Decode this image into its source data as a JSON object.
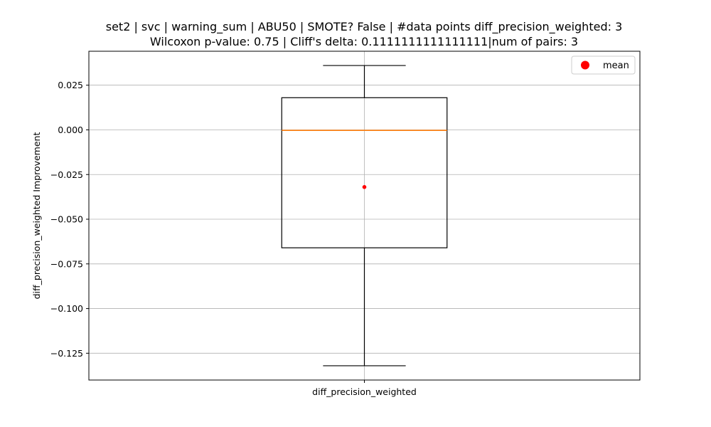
{
  "chart_data": {
    "type": "box",
    "title": "set2 | svc | warning_sum | ABU50 | SMOTE? False | #data points diff_precision_weighted: 3",
    "subtitle": "Wilcoxon p-value: 0.75 | Cliff's delta: 0.1111111111111111|num of pairs: 3",
    "xlabel": "",
    "ylabel": "diff_precision_weighted Improvement",
    "categories": [
      "diff_precision_weighted"
    ],
    "ylim": [
      -0.14,
      0.044
    ],
    "yticks": [
      0.025,
      0.0,
      -0.025,
      -0.05,
      -0.075,
      -0.1,
      -0.125
    ],
    "ytick_labels": [
      "0.025",
      "0.000",
      "−0.025",
      "−0.050",
      "−0.075",
      "−0.100",
      "−0.125"
    ],
    "grid": true,
    "legend": {
      "position": "top-right",
      "entries": [
        "mean"
      ]
    },
    "boxes": [
      {
        "name": "diff_precision_weighted",
        "whisker_low": -0.132,
        "q1": -0.066,
        "median": -0.0003,
        "q3": 0.018,
        "whisker_high": 0.036,
        "mean": -0.032
      }
    ],
    "colors": {
      "box": "#000000",
      "median": "#ff7f0e",
      "mean": "#ff0000",
      "grid": "#b0b0b0"
    }
  }
}
